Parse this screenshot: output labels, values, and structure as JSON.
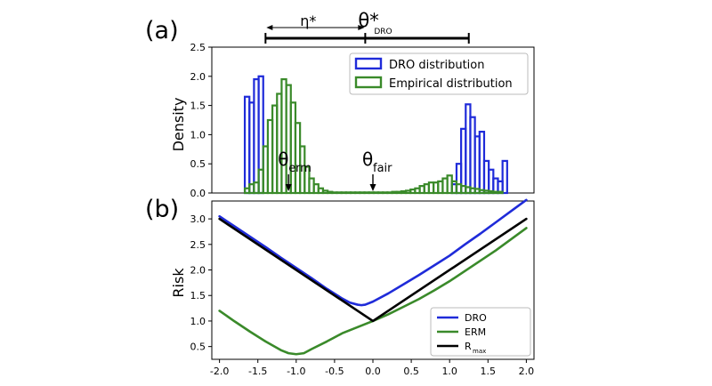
{
  "chart_data": [
    {
      "panel_label": "(a)",
      "type": "histogram",
      "ylabel": "Density",
      "xlim": [
        -2.1,
        2.1
      ],
      "ylim": [
        0,
        2.5
      ],
      "yticks": [
        "0.0",
        "0.5",
        "1.0",
        "1.5",
        "2.0",
        "2.5"
      ],
      "yticks_values": [
        0,
        0.5,
        1.0,
        1.5,
        2.0,
        2.5
      ],
      "legend_position": "top-right",
      "series": [
        {
          "name": "DRO distribution",
          "color": "#1f2bd9",
          "bin_width": 0.06,
          "bins": [
            [
              -1.67,
              1.65
            ],
            [
              -1.61,
              1.55
            ],
            [
              -1.55,
              1.95
            ],
            [
              -1.49,
              2.0
            ],
            [
              1.03,
              0.15
            ],
            [
              1.09,
              0.5
            ],
            [
              1.15,
              1.1
            ],
            [
              1.21,
              1.52
            ],
            [
              1.27,
              1.3
            ],
            [
              1.33,
              0.97
            ],
            [
              1.39,
              1.05
            ],
            [
              1.45,
              0.55
            ],
            [
              1.51,
              0.4
            ],
            [
              1.57,
              0.25
            ],
            [
              1.63,
              0.2
            ],
            [
              1.69,
              0.55
            ]
          ]
        },
        {
          "name": "Empirical distribution",
          "color": "#3a8a2a",
          "bin_width": 0.06,
          "bins": [
            [
              -1.67,
              0.08
            ],
            [
              -1.61,
              0.15
            ],
            [
              -1.55,
              0.18
            ],
            [
              -1.49,
              0.4
            ],
            [
              -1.43,
              0.8
            ],
            [
              -1.37,
              1.25
            ],
            [
              -1.31,
              1.5
            ],
            [
              -1.25,
              1.7
            ],
            [
              -1.19,
              1.95
            ],
            [
              -1.13,
              1.85
            ],
            [
              -1.07,
              1.55
            ],
            [
              -1.01,
              1.2
            ],
            [
              -0.95,
              0.8
            ],
            [
              -0.89,
              0.45
            ],
            [
              -0.83,
              0.25
            ],
            [
              -0.77,
              0.15
            ],
            [
              -0.71,
              0.08
            ],
            [
              -0.65,
              0.04
            ],
            [
              -0.59,
              0.02
            ],
            [
              -0.53,
              0.01
            ],
            [
              -0.47,
              0.01
            ],
            [
              -0.41,
              0.01
            ],
            [
              -0.35,
              0.01
            ],
            [
              -0.29,
              0.01
            ],
            [
              -0.23,
              0.01
            ],
            [
              -0.17,
              0.01
            ],
            [
              -0.11,
              0.01
            ],
            [
              -0.05,
              0.01
            ],
            [
              0.01,
              0.01
            ],
            [
              0.07,
              0.01
            ],
            [
              0.13,
              0.01
            ],
            [
              0.19,
              0.01
            ],
            [
              0.25,
              0.02
            ],
            [
              0.31,
              0.02
            ],
            [
              0.37,
              0.03
            ],
            [
              0.43,
              0.04
            ],
            [
              0.49,
              0.06
            ],
            [
              0.55,
              0.08
            ],
            [
              0.61,
              0.12
            ],
            [
              0.67,
              0.15
            ],
            [
              0.73,
              0.18
            ],
            [
              0.79,
              0.18
            ],
            [
              0.85,
              0.2
            ],
            [
              0.91,
              0.25
            ],
            [
              0.97,
              0.3
            ],
            [
              1.03,
              0.2
            ],
            [
              1.09,
              0.15
            ],
            [
              1.15,
              0.12
            ],
            [
              1.21,
              0.1
            ],
            [
              1.27,
              0.08
            ],
            [
              1.33,
              0.07
            ],
            [
              1.39,
              0.05
            ],
            [
              1.45,
              0.04
            ],
            [
              1.51,
              0.03
            ],
            [
              1.57,
              0.02
            ],
            [
              1.63,
              0.02
            ]
          ]
        }
      ],
      "annotations": [
        {
          "label": "θ",
          "subscript": "erm",
          "x": -1.1
        },
        {
          "label": "θ",
          "subscript": "fair",
          "x": 0.0
        }
      ],
      "top_bracket": {
        "eta_label": "η*",
        "theta_label": "θ*",
        "theta_subscript": "DRO",
        "start": -1.4,
        "center": -0.1,
        "end": 1.25
      }
    },
    {
      "panel_label": "(b)",
      "type": "line",
      "ylabel": "Risk",
      "xlim": [
        -2.1,
        2.1
      ],
      "ylim": [
        0.25,
        3.35
      ],
      "xticks": [
        "-2.0",
        "-1.5",
        "-1.0",
        "-0.5",
        "0.0",
        "0.5",
        "1.0",
        "1.5",
        "2.0"
      ],
      "xticks_values": [
        -2.0,
        -1.5,
        -1.0,
        -0.5,
        0.0,
        0.5,
        1.0,
        1.5,
        2.0
      ],
      "yticks": [
        "0.5",
        "1.0",
        "1.5",
        "2.0",
        "2.5",
        "3.0"
      ],
      "yticks_values": [
        0.5,
        1.0,
        1.5,
        2.0,
        2.5,
        3.0
      ],
      "legend_position": "bottom-right",
      "series": [
        {
          "name": "DRO",
          "color": "#1f2bd9",
          "x": [
            -2.0,
            -1.8,
            -1.6,
            -1.4,
            -1.2,
            -1.0,
            -0.8,
            -0.6,
            -0.4,
            -0.3,
            -0.2,
            -0.15,
            -0.1,
            0.0,
            0.2,
            0.4,
            0.6,
            0.8,
            1.0,
            1.2,
            1.4,
            1.6,
            1.8,
            2.0
          ],
          "y": [
            3.05,
            2.85,
            2.65,
            2.45,
            2.24,
            2.04,
            1.84,
            1.63,
            1.44,
            1.36,
            1.32,
            1.31,
            1.32,
            1.38,
            1.54,
            1.72,
            1.9,
            2.09,
            2.28,
            2.5,
            2.71,
            2.93,
            3.15,
            3.37
          ]
        },
        {
          "name": "ERM",
          "color": "#3a8a2a",
          "x": [
            -2.0,
            -1.8,
            -1.6,
            -1.4,
            -1.2,
            -1.1,
            -1.0,
            -0.9,
            -0.8,
            -0.6,
            -0.4,
            -0.2,
            0.0,
            0.2,
            0.4,
            0.6,
            0.8,
            1.0,
            1.2,
            1.4,
            1.6,
            1.8,
            2.0
          ],
          "y": [
            1.2,
            0.99,
            0.79,
            0.6,
            0.43,
            0.37,
            0.35,
            0.37,
            0.45,
            0.6,
            0.76,
            0.88,
            1.0,
            1.13,
            1.28,
            1.43,
            1.6,
            1.78,
            1.98,
            2.18,
            2.38,
            2.6,
            2.82
          ]
        },
        {
          "name": "R",
          "subscript": "max",
          "color": "#000000",
          "x": [
            -2.0,
            0.0,
            2.0
          ],
          "y": [
            3.0,
            1.0,
            3.0
          ]
        }
      ]
    }
  ]
}
